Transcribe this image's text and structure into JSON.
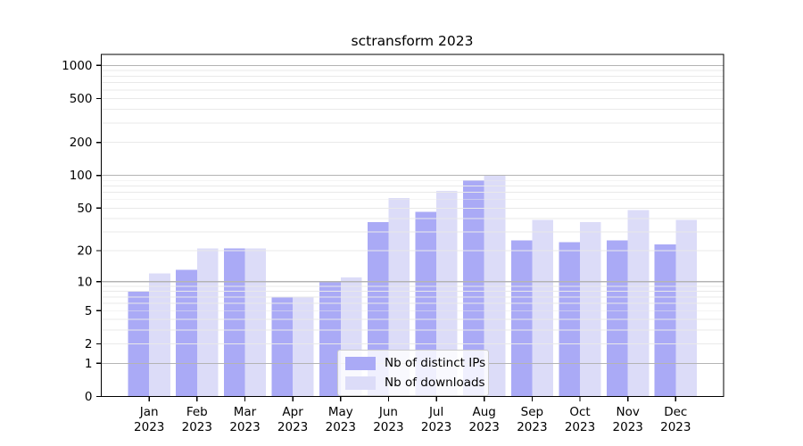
{
  "chart_data": {
    "type": "bar",
    "title": "sctransform 2023",
    "categories": [
      "Jan 2023",
      "Feb 2023",
      "Mar 2023",
      "Apr 2023",
      "May 2023",
      "Jun 2023",
      "Jul 2023",
      "Aug 2023",
      "Sep 2023",
      "Oct 2023",
      "Nov 2023",
      "Dec 2023"
    ],
    "month_labels": [
      "Jan",
      "Feb",
      "Mar",
      "Apr",
      "May",
      "Jun",
      "Jul",
      "Aug",
      "Sep",
      "Oct",
      "Nov",
      "Dec"
    ],
    "year_label": "2023",
    "series": [
      {
        "name": "Nb of distinct IPs",
        "color": "#aaaaf6",
        "values": [
          8,
          13,
          21,
          7,
          10,
          37,
          46,
          90,
          25,
          24,
          25,
          23
        ]
      },
      {
        "name": "Nb of downloads",
        "color": "#dcdcf8",
        "values": [
          12,
          21,
          21,
          7,
          11,
          62,
          72,
          100,
          39,
          37,
          48,
          39
        ]
      }
    ],
    "xlabel": "",
    "ylabel": "",
    "yscale": "log1p",
    "ylim": [
      0,
      1257
    ],
    "ytick_values": [
      0,
      1,
      2,
      5,
      10,
      20,
      50,
      100,
      200,
      500,
      1000
    ],
    "ytick_labels": [
      "0",
      "1",
      "2",
      "5",
      "10",
      "20",
      "50",
      "100",
      "200",
      "500",
      "1000"
    ],
    "grid": {
      "major_decades": [
        1,
        10,
        100,
        1000
      ],
      "major_color": "#b4b4b4",
      "minor_color": "#e9e9e9",
      "grid_on": true,
      "grid_above_bars": true
    },
    "legend_position": "inside lower-center-left",
    "axis_color": "#000000",
    "text_color": "#000000"
  }
}
